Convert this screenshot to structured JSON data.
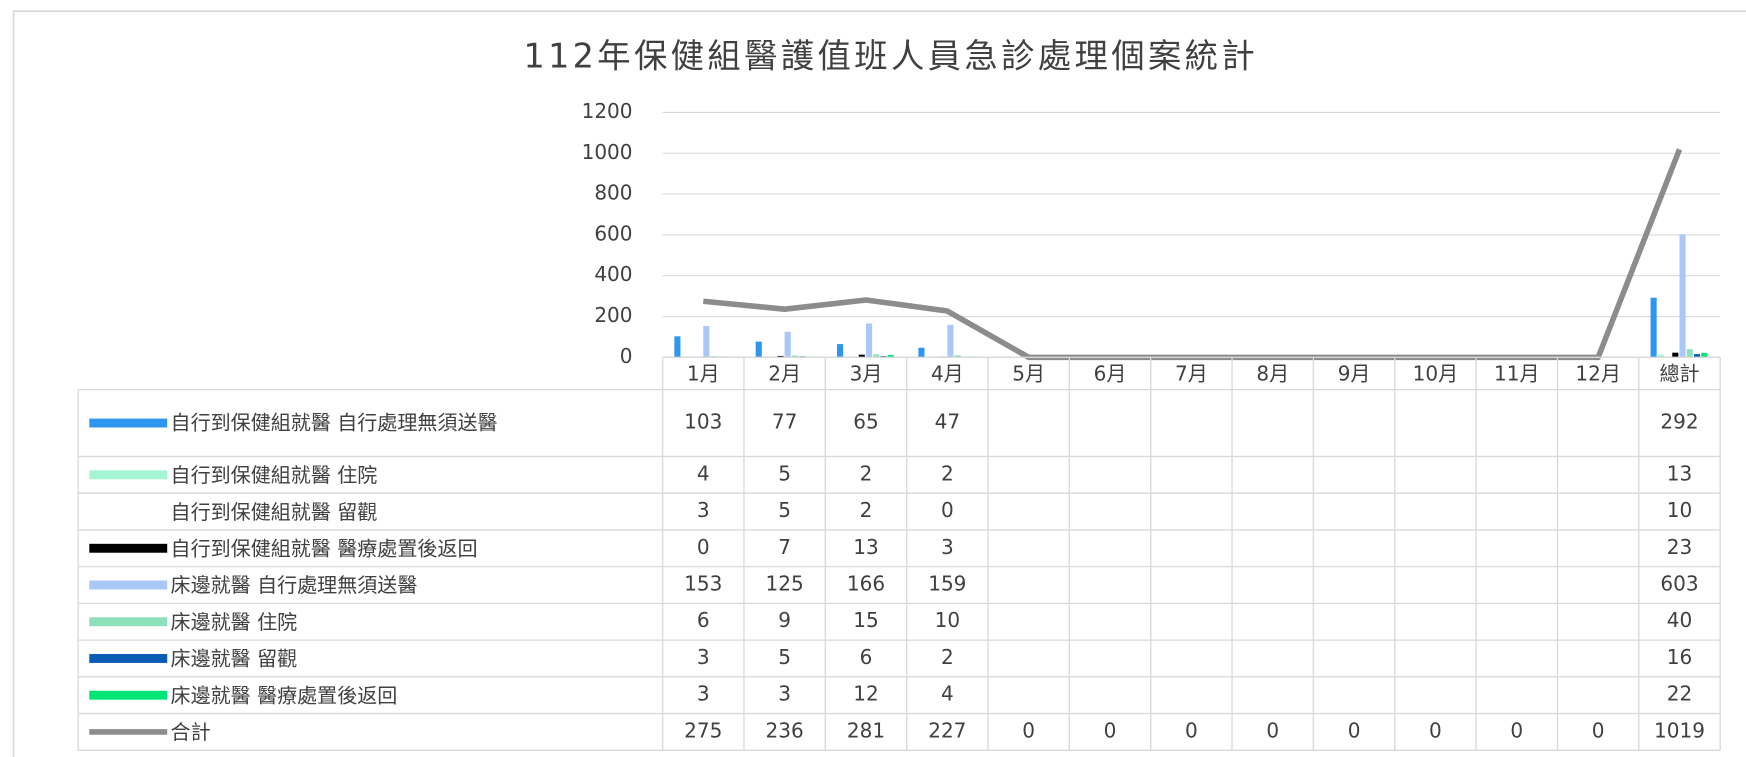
{
  "chart_data": {
    "type": "bar",
    "title": "112年保健組醫護值班人員急診處理個案統計",
    "categories": [
      "1月",
      "2月",
      "3月",
      "4月",
      "5月",
      "6月",
      "7月",
      "8月",
      "9月",
      "10月",
      "11月",
      "12月",
      "總計"
    ],
    "ylim": [
      0,
      1200
    ],
    "yticks": [
      0,
      200,
      400,
      600,
      800,
      1000,
      1200
    ],
    "grid": true,
    "series": [
      {
        "name": "自行到保健組就醫 自行處理無須送醫",
        "color": "#2f96f0",
        "values": [
          103,
          77,
          65,
          47,
          null,
          null,
          null,
          null,
          null,
          null,
          null,
          null,
          292
        ]
      },
      {
        "name": "自行到保健組就醫 住院",
        "color": "#a6f5d2",
        "values": [
          4,
          5,
          2,
          2,
          null,
          null,
          null,
          null,
          null,
          null,
          null,
          null,
          13
        ]
      },
      {
        "name": "自行到保健組就醫 留觀",
        "color": "#ffffff",
        "values": [
          3,
          5,
          2,
          0,
          null,
          null,
          null,
          null,
          null,
          null,
          null,
          null,
          10
        ]
      },
      {
        "name": "自行到保健組就醫 醫療處置後返回",
        "color": "#000000",
        "values": [
          0,
          7,
          13,
          3,
          null,
          null,
          null,
          null,
          null,
          null,
          null,
          null,
          23
        ]
      },
      {
        "name": "床邊就醫 自行處理無須送醫",
        "color": "#a9c8f7",
        "values": [
          153,
          125,
          166,
          159,
          null,
          null,
          null,
          null,
          null,
          null,
          null,
          null,
          603
        ]
      },
      {
        "name": "床邊就醫 住院",
        "color": "#8ee0ba",
        "values": [
          6,
          9,
          15,
          10,
          null,
          null,
          null,
          null,
          null,
          null,
          null,
          null,
          40
        ]
      },
      {
        "name": "床邊就醫 留觀",
        "color": "#0a5bb5",
        "values": [
          3,
          5,
          6,
          2,
          null,
          null,
          null,
          null,
          null,
          null,
          null,
          null,
          16
        ]
      },
      {
        "name": "床邊就醫 醫療處置後返回",
        "color": "#00e676",
        "values": [
          3,
          3,
          12,
          4,
          null,
          null,
          null,
          null,
          null,
          null,
          null,
          null,
          22
        ]
      },
      {
        "name": "合計",
        "type": "line",
        "color": "#8c8c8c",
        "values": [
          275,
          236,
          281,
          227,
          0,
          0,
          0,
          0,
          0,
          0,
          0,
          0,
          1019
        ]
      }
    ]
  }
}
